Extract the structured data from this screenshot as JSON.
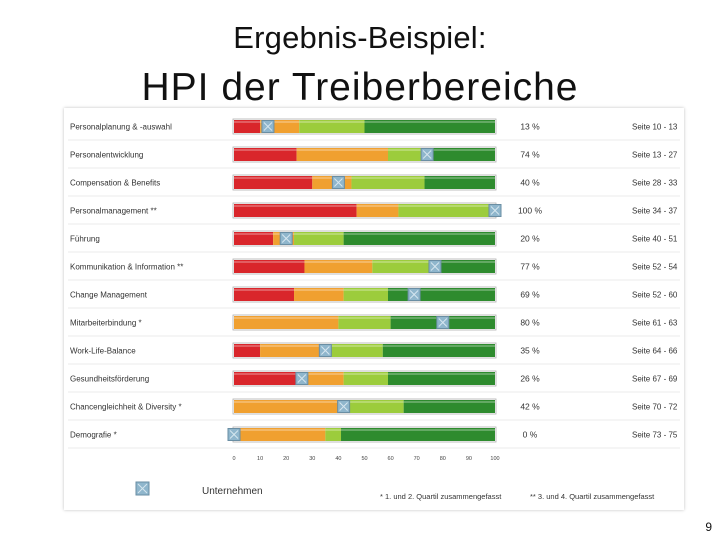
{
  "slide": {
    "title_line1": "Ergebnis-Beispiel:",
    "title_line2": "HPI der Treiberbereiche",
    "page_number": "9"
  },
  "legend": {
    "marker_label": "Unternehmen",
    "note_1": "* 1. und 2. Quartil zusammengefasst",
    "note_2": "** 3. und 4. Quartil zusammengefasst"
  },
  "colors": {
    "red": "#d9262b",
    "orange": "#f0a030",
    "lightgreen": "#9ccc3c",
    "darkgreen": "#2e8b2e",
    "marker": "#8fb6cc"
  },
  "chart_data": {
    "type": "bar",
    "subtype": "stacked-horizontal-percentile",
    "xlim": [
      0,
      100
    ],
    "x_ticks": [
      "0",
      "10",
      "20",
      "30",
      "40",
      "50",
      "60",
      "70",
      "80",
      "90",
      "100"
    ],
    "rows": [
      {
        "label": "Personalplanung & -auswahl",
        "segments": [
          10,
          15,
          25,
          50
        ],
        "marker": 13,
        "value": "13 %",
        "pages": "Seite 10 - 13"
      },
      {
        "label": "Personalentwicklung",
        "segments": [
          24,
          35,
          14,
          27
        ],
        "marker": 74,
        "value": "74 %",
        "pages": "Seite 13 - 27"
      },
      {
        "label": "Compensation & Benefits",
        "segments": [
          30,
          15,
          28,
          27
        ],
        "marker": 40,
        "value": "40 %",
        "pages": "Seite 28 - 33"
      },
      {
        "label": "Personalmanagement **",
        "segments": [
          47,
          16,
          37,
          0
        ],
        "marker": 100,
        "value": "100 %",
        "pages": "Seite 34 - 37"
      },
      {
        "label": "Führung",
        "segments": [
          15,
          8,
          19,
          58
        ],
        "marker": 20,
        "value": "20 %",
        "pages": "Seite 40 - 51"
      },
      {
        "label": "Kommunikation & Information **",
        "segments": [
          27,
          26,
          24,
          23
        ],
        "marker": 77,
        "value": "77 %",
        "pages": "Seite 52 - 54"
      },
      {
        "label": "Change Management",
        "segments": [
          23,
          19,
          17,
          41
        ],
        "marker": 69,
        "value": "69 %",
        "pages": "Seite 52 - 60"
      },
      {
        "label": "Mitarbeiterbindung *",
        "segments": [
          0,
          40,
          20,
          40
        ],
        "marker": 80,
        "value": "80 %",
        "pages": "Seite 61 - 63"
      },
      {
        "label": "Work-Life-Balance",
        "segments": [
          10,
          26,
          21,
          43
        ],
        "marker": 35,
        "value": "35 %",
        "pages": "Seite 64 - 66"
      },
      {
        "label": "Gesundheitsförderung",
        "segments": [
          25,
          17,
          17,
          41
        ],
        "marker": 26,
        "value": "26 %",
        "pages": "Seite 67 - 69"
      },
      {
        "label": "Chancengleichheit & Diversity *",
        "segments": [
          0,
          43,
          22,
          35
        ],
        "marker": 42,
        "value": "42 %",
        "pages": "Seite 70 - 72"
      },
      {
        "label": "Demografie *",
        "segments": [
          0,
          35,
          6,
          59
        ],
        "marker": 0,
        "value": "0 %",
        "pages": "Seite 73 - 75"
      }
    ]
  }
}
